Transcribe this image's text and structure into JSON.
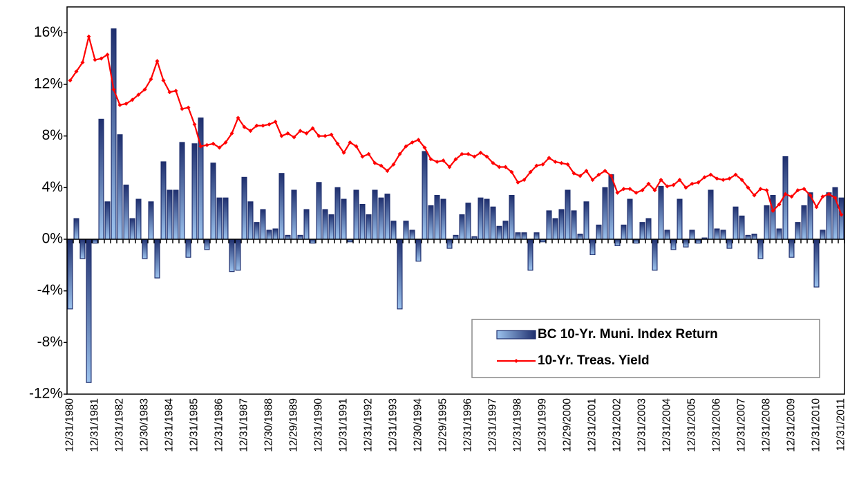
{
  "chart_data": {
    "type": "bar_line",
    "categories": [
      "12/31/1980",
      null,
      null,
      null,
      "12/31/1981",
      null,
      null,
      null,
      "12/31/1982",
      null,
      null,
      null,
      "12/30/1983",
      null,
      null,
      null,
      "12/31/1984",
      null,
      null,
      null,
      "12/31/1985",
      null,
      null,
      null,
      "12/31/1986",
      null,
      null,
      null,
      "12/31/1987",
      null,
      null,
      null,
      "12/30/1988",
      null,
      null,
      null,
      "12/29/1989",
      null,
      null,
      null,
      "12/31/1990",
      null,
      null,
      null,
      "12/31/1991",
      null,
      null,
      null,
      "12/31/1992",
      null,
      null,
      null,
      "12/31/1993",
      null,
      null,
      null,
      "12/30/1994",
      null,
      null,
      null,
      "12/29/1995",
      null,
      null,
      null,
      "12/31/1996",
      null,
      null,
      null,
      "12/31/1997",
      null,
      null,
      null,
      "12/31/1998",
      null,
      null,
      null,
      "12/31/1999",
      null,
      null,
      null,
      "12/29/2000",
      null,
      null,
      null,
      "12/31/2001",
      null,
      null,
      null,
      "12/31/2002",
      null,
      null,
      null,
      "12/31/2003",
      null,
      null,
      null,
      "12/31/2004",
      null,
      null,
      null,
      "12/31/2005",
      null,
      null,
      null,
      "12/31/2006",
      null,
      null,
      null,
      "12/31/2007",
      null,
      null,
      null,
      "12/31/2008",
      null,
      null,
      null,
      "12/31/2009",
      null,
      null,
      null,
      "12/31/2010",
      null,
      null,
      null,
      "12/31/2011"
    ],
    "series": [
      {
        "name": "BC 10-Yr. Muni. Index Return",
        "type": "bar",
        "color": "#1f2f6e",
        "values": [
          -5.4,
          1.6,
          -1.5,
          -11.1,
          -0.3,
          9.3,
          2.9,
          16.3,
          8.1,
          4.2,
          1.6,
          3.1,
          -1.5,
          2.9,
          -3.0,
          6.0,
          3.8,
          3.8,
          7.5,
          -1.4,
          7.4,
          9.4,
          -0.8,
          5.9,
          3.2,
          3.2,
          -2.5,
          -2.4,
          4.8,
          2.9,
          1.3,
          2.3,
          0.7,
          0.8,
          5.1,
          0.3,
          3.8,
          0.3,
          2.3,
          -0.3,
          4.4,
          2.3,
          1.9,
          4.0,
          3.1,
          -0.2,
          3.8,
          2.7,
          1.9,
          3.8,
          3.2,
          3.5,
          1.4,
          -5.4,
          1.4,
          0.7,
          -1.7,
          6.8,
          2.6,
          3.4,
          3.1,
          -0.7,
          0.3,
          1.9,
          2.8,
          0.2,
          3.2,
          3.1,
          2.5,
          1.0,
          1.4,
          3.4,
          0.5,
          0.5,
          -2.4,
          0.5,
          -0.2,
          2.2,
          1.6,
          2.3,
          3.8,
          2.2,
          0.4,
          2.9,
          -1.2,
          1.1,
          4.0,
          5.0,
          -0.5,
          1.1,
          3.1,
          -0.3,
          1.3,
          1.6,
          -2.4,
          4.1,
          0.7,
          -0.8,
          3.1,
          -0.6,
          0.7,
          -0.3,
          0.1,
          3.8,
          0.8,
          0.7,
          -0.7,
          2.5,
          1.8,
          0.3,
          0.4,
          -1.5,
          2.6,
          3.4,
          0.8,
          6.4,
          -1.4,
          1.3,
          2.6,
          3.6,
          -3.7,
          0.7,
          3.6,
          4.0,
          3.2
        ]
      },
      {
        "name": "10-Yr. Treas. Yield",
        "type": "line",
        "color": "#ff0000",
        "values": [
          12.3,
          13.0,
          13.7,
          15.7,
          13.9,
          14.0,
          14.3,
          11.6,
          10.4,
          10.5,
          10.8,
          11.2,
          11.6,
          12.4,
          13.8,
          12.3,
          11.4,
          11.5,
          10.1,
          10.2,
          8.9,
          7.2,
          7.3,
          7.4,
          7.1,
          7.5,
          8.2,
          9.4,
          8.7,
          8.4,
          8.8,
          8.8,
          8.9,
          9.1,
          8.0,
          8.2,
          7.9,
          8.4,
          8.2,
          8.6,
          8.0,
          8.0,
          8.1,
          7.4,
          6.7,
          7.5,
          7.2,
          6.4,
          6.6,
          5.9,
          5.7,
          5.3,
          5.8,
          6.6,
          7.2,
          7.5,
          7.7,
          7.1,
          6.2,
          6.0,
          6.1,
          5.6,
          6.2,
          6.6,
          6.6,
          6.4,
          6.7,
          6.4,
          5.9,
          5.6,
          5.6,
          5.2,
          4.4,
          4.6,
          5.2,
          5.7,
          5.8,
          6.3,
          6.0,
          5.9,
          5.8,
          5.1,
          4.9,
          5.3,
          4.6,
          5.0,
          5.3,
          4.9,
          3.6,
          3.9,
          3.9,
          3.6,
          3.8,
          4.3,
          3.8,
          4.6,
          4.1,
          4.2,
          4.6,
          4.0,
          4.3,
          4.4,
          4.8,
          5.0,
          4.7,
          4.6,
          4.7,
          5.0,
          4.6,
          4.0,
          3.4,
          3.9,
          3.8,
          2.2,
          2.7,
          3.5,
          3.3,
          3.8,
          3.9,
          3.4,
          2.5,
          3.3,
          3.5,
          3.2,
          1.9
        ]
      }
    ],
    "ylim": [
      -12,
      18
    ],
    "yticks": [
      {
        "value": -12,
        "label": "-12%"
      },
      {
        "value": -8,
        "label": "-8%"
      },
      {
        "value": -4,
        "label": "-4%"
      },
      {
        "value": 0,
        "label": "0%"
      },
      {
        "value": 4,
        "label": "4%"
      },
      {
        "value": 8,
        "label": "8%"
      },
      {
        "value": 12,
        "label": "12%"
      },
      {
        "value": 16,
        "label": "16%"
      }
    ],
    "legend": "lower right"
  }
}
